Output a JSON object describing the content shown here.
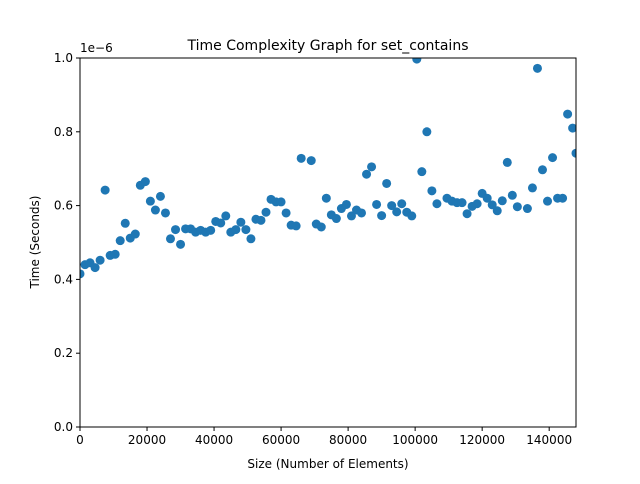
{
  "chart_data": {
    "type": "scatter",
    "title": "Time Complexity Graph for set_contains",
    "xlabel": "Size (Number of Elements)",
    "ylabel": "Time (Seconds)",
    "y_offset_label": "1e−6",
    "xlim": [
      0,
      148000
    ],
    "ylim": [
      0,
      1.0
    ],
    "xticks": [
      0,
      20000,
      40000,
      60000,
      80000,
      100000,
      120000,
      140000
    ],
    "xtick_labels": [
      "0",
      "20000",
      "40000",
      "60000",
      "80000",
      "100000",
      "120000",
      "140000"
    ],
    "yticks": [
      0,
      0.2,
      0.4,
      0.6,
      0.8,
      1.0
    ],
    "ytick_labels": [
      "0.0",
      "0.2",
      "0.4",
      "0.6",
      "0.8",
      "1.0"
    ],
    "marker_color": "#1f77b4",
    "grid": false,
    "points": [
      [
        0,
        0.415
      ],
      [
        1500,
        0.44
      ],
      [
        3000,
        0.445
      ],
      [
        4500,
        0.432
      ],
      [
        6000,
        0.452
      ],
      [
        7500,
        0.642
      ],
      [
        9000,
        0.465
      ],
      [
        10500,
        0.468
      ],
      [
        12000,
        0.505
      ],
      [
        13500,
        0.552
      ],
      [
        15000,
        0.512
      ],
      [
        16500,
        0.523
      ],
      [
        18000,
        0.655
      ],
      [
        19500,
        0.665
      ],
      [
        21000,
        0.612
      ],
      [
        22500,
        0.588
      ],
      [
        24000,
        0.625
      ],
      [
        25500,
        0.58
      ],
      [
        27000,
        0.51
      ],
      [
        28500,
        0.535
      ],
      [
        30000,
        0.495
      ],
      [
        31500,
        0.537
      ],
      [
        33000,
        0.537
      ],
      [
        34500,
        0.528
      ],
      [
        36000,
        0.533
      ],
      [
        37500,
        0.528
      ],
      [
        39000,
        0.533
      ],
      [
        40500,
        0.557
      ],
      [
        42000,
        0.553
      ],
      [
        43500,
        0.572
      ],
      [
        45000,
        0.528
      ],
      [
        46500,
        0.535
      ],
      [
        48000,
        0.555
      ],
      [
        49500,
        0.535
      ],
      [
        51000,
        0.51
      ],
      [
        52500,
        0.563
      ],
      [
        54000,
        0.56
      ],
      [
        55500,
        0.582
      ],
      [
        57000,
        0.617
      ],
      [
        58500,
        0.61
      ],
      [
        60000,
        0.61
      ],
      [
        61500,
        0.58
      ],
      [
        63000,
        0.547
      ],
      [
        64500,
        0.545
      ],
      [
        66000,
        0.728
      ],
      [
        69000,
        0.722
      ],
      [
        70500,
        0.55
      ],
      [
        72000,
        0.542
      ],
      [
        73500,
        0.62
      ],
      [
        75000,
        0.575
      ],
      [
        76500,
        0.565
      ],
      [
        78000,
        0.592
      ],
      [
        79500,
        0.603
      ],
      [
        81000,
        0.572
      ],
      [
        82500,
        0.588
      ],
      [
        84000,
        0.58
      ],
      [
        85500,
        0.685
      ],
      [
        87000,
        0.705
      ],
      [
        88500,
        0.603
      ],
      [
        90000,
        0.573
      ],
      [
        91500,
        0.66
      ],
      [
        93000,
        0.6
      ],
      [
        94500,
        0.583
      ],
      [
        96000,
        0.605
      ],
      [
        97500,
        0.582
      ],
      [
        99000,
        0.572
      ],
      [
        100500,
        0.997
      ],
      [
        102000,
        0.692
      ],
      [
        103500,
        0.8
      ],
      [
        105000,
        0.64
      ],
      [
        106500,
        0.605
      ],
      [
        109500,
        0.62
      ],
      [
        111000,
        0.612
      ],
      [
        112500,
        0.608
      ],
      [
        114000,
        0.608
      ],
      [
        115500,
        0.578
      ],
      [
        117000,
        0.598
      ],
      [
        118500,
        0.605
      ],
      [
        120000,
        0.633
      ],
      [
        121500,
        0.62
      ],
      [
        123000,
        0.602
      ],
      [
        124500,
        0.586
      ],
      [
        126000,
        0.613
      ],
      [
        127500,
        0.717
      ],
      [
        129000,
        0.628
      ],
      [
        130500,
        0.597
      ],
      [
        133500,
        0.592
      ],
      [
        135000,
        0.648
      ],
      [
        136500,
        0.972
      ],
      [
        138000,
        0.697
      ],
      [
        139500,
        0.612
      ],
      [
        141000,
        0.73
      ],
      [
        142500,
        0.62
      ],
      [
        144000,
        0.62
      ],
      [
        145500,
        0.848
      ],
      [
        147000,
        0.81
      ],
      [
        148000,
        0.742
      ]
    ]
  }
}
